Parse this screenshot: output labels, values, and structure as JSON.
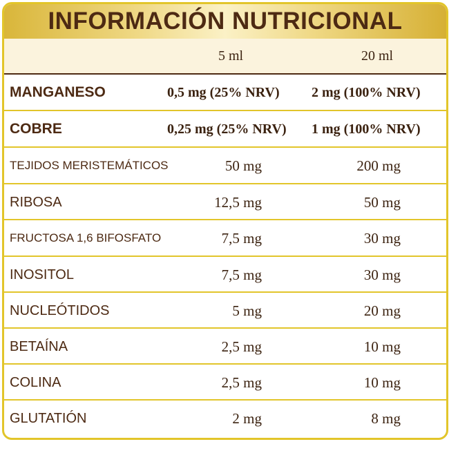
{
  "title": "INFORMACIÓN NUTRICIONAL",
  "columns": [
    "5 ml",
    "20 ml"
  ],
  "rows": [
    {
      "name": "MANGANESO",
      "v5": "0,5 mg (25% NRV)",
      "v20": "2 mg (100% NRV)"
    },
    {
      "name": "COBRE",
      "v5": "0,25 mg (25% NRV)",
      "v20": "1 mg (100% NRV)"
    },
    {
      "name": "TEJIDOS MERISTEMÁTICOS",
      "v5": "50 mg",
      "v20": "200 mg"
    },
    {
      "name": "RIBOSA",
      "v5": "12,5 mg",
      "v20": "50 mg"
    },
    {
      "name": "FRUCTOSA 1,6 BIFOSFATO",
      "v5": "7,5 mg",
      "v20": "30 mg"
    },
    {
      "name": "INOSITOL",
      "v5": "7,5 mg",
      "v20": "30 mg"
    },
    {
      "name": "NUCLEÓTIDOS",
      "v5": "5 mg",
      "v20": "20 mg"
    },
    {
      "name": "BETAÍNA",
      "v5": "2,5 mg",
      "v20": "10 mg"
    },
    {
      "name": "COLINA",
      "v5": "2,5 mg",
      "v20": "10 mg"
    },
    {
      "name": "GLUTATIÓN",
      "v5": "2 mg",
      "v20": "8 mg"
    }
  ],
  "colors": {
    "border": "#e2c52a",
    "text": "#4d2a13",
    "header_bg": "#fbf3dd"
  }
}
